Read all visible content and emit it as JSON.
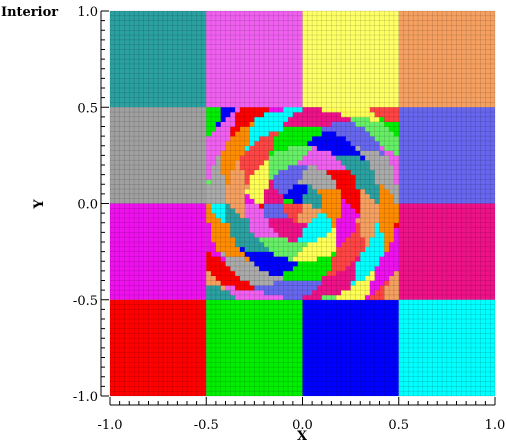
{
  "chart_data": {
    "type": "heatmap",
    "title": "",
    "variable_label": "Interior",
    "xlabel": "X",
    "ylabel": "Y",
    "xlim": [
      -1.0,
      1.0
    ],
    "ylim": [
      -1.0,
      1.0
    ],
    "x_ticks": [
      -1.0,
      -0.5,
      0.0,
      0.5,
      1.0
    ],
    "y_ticks": [
      -1.0,
      -0.5,
      0.0,
      0.5,
      1.0
    ],
    "x_tick_labels": [
      "-1.0",
      "-0.5",
      "0.0",
      "0.5",
      "1.0"
    ],
    "y_tick_labels": [
      "-1.0",
      "-0.5",
      "0.0",
      "0.5",
      "1.0"
    ],
    "grid": false,
    "mesh_lines": true,
    "legend": "none",
    "outer_blocks": [
      {
        "x": [
          -1.0,
          -0.5
        ],
        "y": [
          0.5,
          1.0
        ],
        "color": "#2aa0a0"
      },
      {
        "x": [
          -0.5,
          0.0
        ],
        "y": [
          0.5,
          1.0
        ],
        "color": "#f060f0"
      },
      {
        "x": [
          0.0,
          0.5
        ],
        "y": [
          0.5,
          1.0
        ],
        "color": "#ffff66"
      },
      {
        "x": [
          0.5,
          1.0
        ],
        "y": [
          0.5,
          1.0
        ],
        "color": "#f5a060"
      },
      {
        "x": [
          -1.0,
          -0.5
        ],
        "y": [
          0.0,
          0.5
        ],
        "color": "#a0a0a0"
      },
      {
        "x": [
          0.5,
          1.0
        ],
        "y": [
          0.0,
          0.5
        ],
        "color": "#6666ee"
      },
      {
        "x": [
          -1.0,
          -0.5
        ],
        "y": [
          -0.5,
          0.0
        ],
        "color": "#ee11ee"
      },
      {
        "x": [
          0.5,
          1.0
        ],
        "y": [
          -0.5,
          0.0
        ],
        "color": "#ee1188"
      },
      {
        "x": [
          -1.0,
          -0.5
        ],
        "y": [
          -1.0,
          -0.5
        ],
        "color": "#ff0000"
      },
      {
        "x": [
          -0.5,
          0.0
        ],
        "y": [
          -1.0,
          -0.5
        ],
        "color": "#00ee00"
      },
      {
        "x": [
          0.0,
          0.5
        ],
        "y": [
          -1.0,
          -0.5
        ],
        "color": "#0000ff"
      },
      {
        "x": [
          0.5,
          1.0
        ],
        "y": [
          -1.0,
          -0.5
        ],
        "color": "#00ffff"
      }
    ],
    "inner_region": {
      "x": [
        -0.5,
        0.5
      ],
      "y": [
        -0.5,
        0.5
      ]
    },
    "inner_palette": [
      "#ff4444",
      "#66ee66",
      "#aaaaaa",
      "#f5a060",
      "#ffff55",
      "#6666ee",
      "#2aa0a0",
      "#ee11ee",
      "#ee1188",
      "#0000ff",
      "#ff0000",
      "#00ffff",
      "#00ee00",
      "#f060f0",
      "#ff8c00"
    ]
  }
}
